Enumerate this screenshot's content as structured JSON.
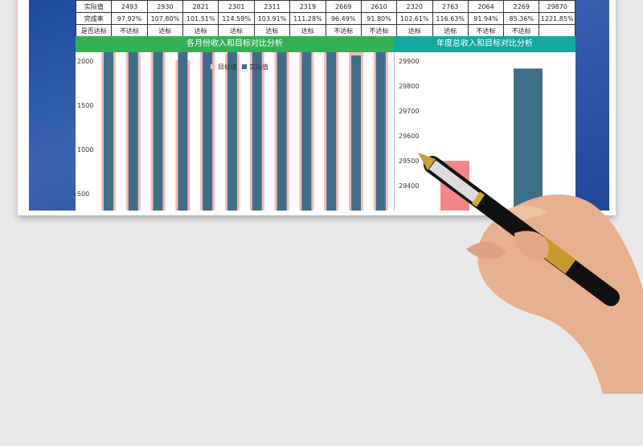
{
  "table": {
    "rows": [
      {
        "label": "实际值",
        "values": [
          "2493",
          "2930",
          "2821",
          "2301",
          "2311",
          "2319",
          "2669",
          "2610",
          "2320",
          "2763",
          "2064",
          "2269",
          "29870"
        ]
      },
      {
        "label": "完成率",
        "values": [
          "97.92%",
          "107.80%",
          "101.51%",
          "114.59%",
          "103.91%",
          "111.28%",
          "96.49%",
          "91.80%",
          "102.61%",
          "116.63%",
          "91.94%",
          "85.36%",
          "1221.85%"
        ]
      },
      {
        "label": "是否达标",
        "values": [
          "不达标",
          "达标",
          "达标",
          "达标",
          "达标",
          "达标",
          "不达标",
          "不达标",
          "达标",
          "达标",
          "不达标",
          "不达标",
          ""
        ]
      }
    ]
  },
  "chart_data": [
    {
      "type": "bar",
      "title": "各月份收入和目标对比分析",
      "legend": "top",
      "ylim": [
        0,
        3500
      ],
      "yticks": [
        "500",
        "1000",
        "1500",
        "2000",
        "2500",
        "3000",
        "3500"
      ],
      "series": [
        {
          "name": "目标值",
          "color": "#f9b8b8",
          "values": [
            2546,
            2718,
            2779,
            2008,
            2224,
            2084,
            2766,
            2843,
            2261,
            2369,
            2245,
            2658
          ]
        },
        {
          "name": "实际值",
          "color": "#3f6f88",
          "values": [
            2493,
            2930,
            2821,
            2301,
            2311,
            2319,
            2669,
            2610,
            2320,
            2763,
            2064,
            2269
          ]
        }
      ]
    },
    {
      "type": "bar",
      "title": "年度总收入和目标对比分析",
      "ylim": [
        29300,
        29900
      ],
      "yticks": [
        "29400",
        "29500",
        "29600",
        "29700",
        "29800",
        "29900"
      ],
      "values": [
        29500,
        29870
      ],
      "colors": [
        "#f4868a",
        "#3f6f88"
      ]
    }
  ],
  "colors": {
    "green_header": "#33b054",
    "teal_header": "#14a8a0"
  }
}
